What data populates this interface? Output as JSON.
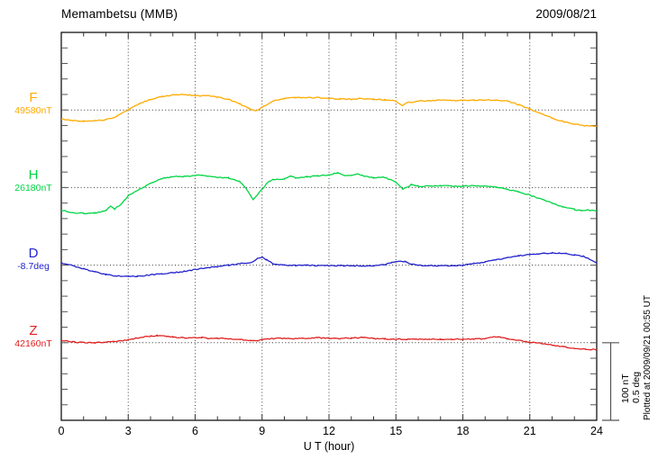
{
  "header": {
    "title": "Memambetsu (MMB)",
    "date": "2009/08/21"
  },
  "footer_note": "Plotted at 2009/09/21 00:55 UT",
  "xaxis": {
    "label": "U T (hour)",
    "ticks": [
      0,
      3,
      6,
      9,
      12,
      15,
      18,
      21,
      24
    ],
    "min": 0,
    "max": 24,
    "minor_step": 1
  },
  "scale_bar": {
    "nt_label": "100 nT",
    "deg_label": "0.5 deg",
    "nT": 100,
    "deg": 0.5,
    "span_frac": 0.2
  },
  "chart_data": {
    "type": "line",
    "title": "Memambetsu (MMB)",
    "xlabel": "U T (hour)",
    "x_range": [
      0,
      24
    ],
    "grid_hours": [
      3,
      6,
      9,
      12,
      15,
      18,
      21
    ],
    "grid": "dotted",
    "legend_position": "left",
    "series": [
      {
        "id": "F",
        "label": "F",
        "ref": "49580nT",
        "unit": "nT",
        "color": "#FFAA00",
        "baseline_frac": 0.2,
        "points": [
          [
            0,
            -11.5
          ],
          [
            0.5,
            -13.8
          ],
          [
            1,
            -14.4
          ],
          [
            1.5,
            -13.8
          ],
          [
            2,
            -12.6
          ],
          [
            2.5,
            -8
          ],
          [
            3,
            0.5
          ],
          [
            3.5,
            8
          ],
          [
            4,
            13.8
          ],
          [
            4.5,
            17.2
          ],
          [
            5,
            19.5
          ],
          [
            5.5,
            20.1
          ],
          [
            6,
            18.4
          ],
          [
            6.5,
            18.4
          ],
          [
            7,
            16.7
          ],
          [
            7.5,
            13.8
          ],
          [
            8,
            8
          ],
          [
            8.4,
            2
          ],
          [
            8.7,
            -1.5
          ],
          [
            9,
            3.4
          ],
          [
            9.5,
            11.5
          ],
          [
            10,
            14.9
          ],
          [
            10.5,
            16.1
          ],
          [
            11,
            15.5
          ],
          [
            11.5,
            16.1
          ],
          [
            12,
            14.9
          ],
          [
            12.5,
            14.4
          ],
          [
            13,
            13.8
          ],
          [
            13.5,
            14.9
          ],
          [
            14,
            13.8
          ],
          [
            14.5,
            13.2
          ],
          [
            15,
            11.5
          ],
          [
            15.3,
            5.7
          ],
          [
            15.5,
            9.2
          ],
          [
            16,
            11.5
          ],
          [
            16.5,
            12
          ],
          [
            17,
            12.6
          ],
          [
            17.5,
            12
          ],
          [
            18,
            12.6
          ],
          [
            18.5,
            12.6
          ],
          [
            19,
            13.2
          ],
          [
            19.5,
            12.6
          ],
          [
            20,
            11.5
          ],
          [
            20.5,
            6.9
          ],
          [
            21,
            1.1
          ],
          [
            21.5,
            -4.6
          ],
          [
            22,
            -10.3
          ],
          [
            22.5,
            -14.9
          ],
          [
            23,
            -18.4
          ],
          [
            23.5,
            -20.1
          ],
          [
            24,
            -20.7
          ]
        ]
      },
      {
        "id": "H",
        "label": "H",
        "ref": "26180nT",
        "unit": "nT",
        "color": "#00D544",
        "baseline_frac": 0.4,
        "points": [
          [
            0,
            -28.7
          ],
          [
            0.5,
            -32.2
          ],
          [
            1,
            -33.3
          ],
          [
            1.5,
            -32.8
          ],
          [
            2,
            -29.9
          ],
          [
            2.2,
            -24.1
          ],
          [
            2.4,
            -27.6
          ],
          [
            2.7,
            -20.7
          ],
          [
            3,
            -10.3
          ],
          [
            3.5,
            -2.3
          ],
          [
            4,
            5.7
          ],
          [
            4.5,
            11.5
          ],
          [
            5,
            13.8
          ],
          [
            5.5,
            14.4
          ],
          [
            6,
            15.5
          ],
          [
            6.3,
            16.1
          ],
          [
            6.5,
            14.9
          ],
          [
            7,
            13.2
          ],
          [
            7.5,
            12.6
          ],
          [
            8,
            8
          ],
          [
            8.3,
            -2
          ],
          [
            8.6,
            -15.5
          ],
          [
            9,
            -2.3
          ],
          [
            9.3,
            8
          ],
          [
            9.5,
            10.3
          ],
          [
            10,
            11.5
          ],
          [
            10.3,
            14.9
          ],
          [
            10.5,
            12.6
          ],
          [
            11,
            13.8
          ],
          [
            11.5,
            14.9
          ],
          [
            12,
            16.1
          ],
          [
            12.4,
            19
          ],
          [
            12.7,
            14.9
          ],
          [
            13,
            16.1
          ],
          [
            13.3,
            17.8
          ],
          [
            13.5,
            15.5
          ],
          [
            14,
            12.6
          ],
          [
            14.5,
            13.2
          ],
          [
            15,
            6.9
          ],
          [
            15.3,
            -1.7
          ],
          [
            15.5,
            0.6
          ],
          [
            15.7,
            4
          ],
          [
            16,
            1.7
          ],
          [
            16.5,
            1.7
          ],
          [
            17,
            2.3
          ],
          [
            17.5,
            1.7
          ],
          [
            18,
            1.7
          ],
          [
            18.5,
            2.3
          ],
          [
            19,
            1.7
          ],
          [
            19.5,
            0.6
          ],
          [
            20,
            -2.3
          ],
          [
            20.5,
            -5.7
          ],
          [
            21,
            -9.8
          ],
          [
            21.5,
            -14.9
          ],
          [
            22,
            -20.1
          ],
          [
            22.5,
            -25.3
          ],
          [
            23,
            -28.2
          ],
          [
            23.3,
            -29.9
          ],
          [
            23.6,
            -28.7
          ],
          [
            24,
            -30.5
          ]
        ]
      },
      {
        "id": "D",
        "label": "D",
        "ref": "-8.7deg",
        "unit": "deg",
        "color": "#2222CC",
        "baseline_frac": 0.6,
        "points": [
          [
            0,
            0.014
          ],
          [
            0.5,
            -0.003
          ],
          [
            1,
            -0.023
          ],
          [
            1.5,
            -0.043
          ],
          [
            2,
            -0.06
          ],
          [
            2.5,
            -0.069
          ],
          [
            3,
            -0.072
          ],
          [
            3.4,
            -0.072
          ],
          [
            4,
            -0.063
          ],
          [
            4.5,
            -0.057
          ],
          [
            5,
            -0.049
          ],
          [
            5.5,
            -0.04
          ],
          [
            6,
            -0.029
          ],
          [
            6.5,
            -0.017
          ],
          [
            7,
            -0.009
          ],
          [
            7.5,
            0
          ],
          [
            8,
            0.009
          ],
          [
            8.5,
            0.017
          ],
          [
            8.8,
            0.043
          ],
          [
            9,
            0.05
          ],
          [
            9.2,
            0.034
          ],
          [
            9.5,
            0.009
          ],
          [
            10,
            0
          ],
          [
            10.5,
            -0.003
          ],
          [
            11,
            0
          ],
          [
            11.5,
            -0.003
          ],
          [
            12,
            -0.003
          ],
          [
            12.5,
            -0.004
          ],
          [
            13,
            -0.003
          ],
          [
            13.5,
            -0.004
          ],
          [
            14,
            -0.003
          ],
          [
            14.5,
            0.003
          ],
          [
            14.8,
            0.017
          ],
          [
            15.1,
            0.026
          ],
          [
            15.4,
            0.023
          ],
          [
            15.7,
            0.006
          ],
          [
            16,
            -0.002
          ],
          [
            16.5,
            -0.003
          ],
          [
            17,
            -0.004
          ],
          [
            17.5,
            -0.003
          ],
          [
            18,
            0
          ],
          [
            18.5,
            0.011
          ],
          [
            19,
            0.02
          ],
          [
            19.5,
            0.034
          ],
          [
            20,
            0.049
          ],
          [
            20.5,
            0.06
          ],
          [
            21,
            0.069
          ],
          [
            21.5,
            0.075
          ],
          [
            22,
            0.078
          ],
          [
            22.3,
            0.079
          ],
          [
            22.6,
            0.075
          ],
          [
            23,
            0.066
          ],
          [
            23.4,
            0.057
          ],
          [
            23.7,
            0.037
          ],
          [
            24,
            0.017
          ]
        ]
      },
      {
        "id": "Z",
        "label": "Z",
        "ref": "42160nT",
        "unit": "nT",
        "color": "#E02020",
        "baseline_frac": 0.8,
        "points": [
          [
            0,
            2.9
          ],
          [
            0.5,
            1.1
          ],
          [
            1,
            0
          ],
          [
            1.5,
            0
          ],
          [
            2,
            0.6
          ],
          [
            2.5,
            1.7
          ],
          [
            3,
            4
          ],
          [
            3.5,
            6.3
          ],
          [
            4,
            8.6
          ],
          [
            4.3,
            9.2
          ],
          [
            4.7,
            8.6
          ],
          [
            5,
            7.5
          ],
          [
            5.5,
            6.3
          ],
          [
            6,
            6.3
          ],
          [
            6.3,
            6.9
          ],
          [
            6.5,
            5.7
          ],
          [
            7,
            5.7
          ],
          [
            7.5,
            5.2
          ],
          [
            8,
            4
          ],
          [
            8.5,
            2.9
          ],
          [
            8.8,
            2.5
          ],
          [
            9,
            4
          ],
          [
            9.5,
            5.4
          ],
          [
            10,
            5.7
          ],
          [
            10.5,
            5.2
          ],
          [
            11,
            5.7
          ],
          [
            11.5,
            6.3
          ],
          [
            12,
            5.7
          ],
          [
            12.5,
            5.4
          ],
          [
            13,
            6
          ],
          [
            13.5,
            6.7
          ],
          [
            14,
            5.4
          ],
          [
            14.5,
            5.2
          ],
          [
            14.8,
            4
          ],
          [
            15,
            4.6
          ],
          [
            15.5,
            4.4
          ],
          [
            16,
            4.6
          ],
          [
            16.5,
            4.4
          ],
          [
            17,
            4.6
          ],
          [
            17.5,
            4.4
          ],
          [
            18,
            4.6
          ],
          [
            18.5,
            4.9
          ],
          [
            19,
            5.2
          ],
          [
            19.4,
            7.5
          ],
          [
            19.7,
            6.9
          ],
          [
            20,
            5.2
          ],
          [
            20.5,
            2.9
          ],
          [
            21,
            0.6
          ],
          [
            21.5,
            -0.6
          ],
          [
            22,
            -2.9
          ],
          [
            22.5,
            -5.2
          ],
          [
            23,
            -7.5
          ],
          [
            23.5,
            -8
          ],
          [
            24,
            -9.2
          ]
        ]
      }
    ]
  }
}
